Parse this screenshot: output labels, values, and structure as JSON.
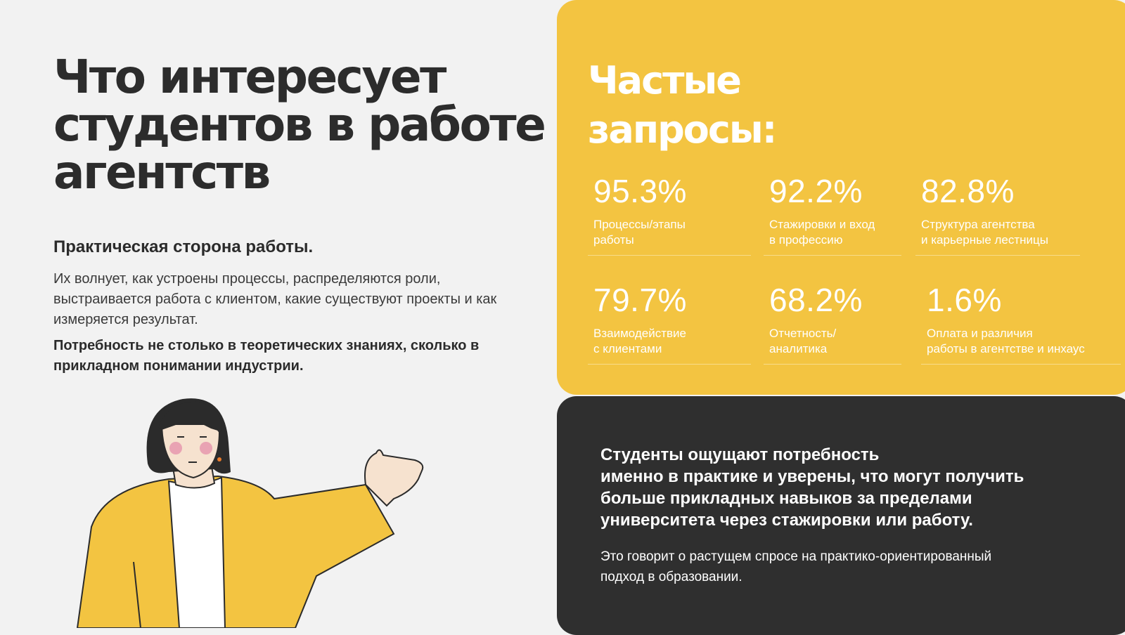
{
  "left": {
    "headline_lines": [
      "Что интересует",
      "студентов в работе",
      "агентств"
    ],
    "subheading": "Практическая сторона работы.",
    "paragraph": "Их волнует, как устроены процессы, распределяются роли, выстраивается работа с клиентом, какие существуют проекты и как измеряется результат.",
    "paragraph_bold": "Потребность не столько в теоретических знаниях, сколько в прикладном понимании индустрии."
  },
  "requests": {
    "title_lines": [
      "Частые",
      "запросы:"
    ],
    "stats": [
      {
        "value": "95.3%",
        "label": "Процессы/этапы\nработы"
      },
      {
        "value": "92.2%",
        "label": "Стажировки и вход\nв профессию"
      },
      {
        "value": "82.8%",
        "label": "Структура агентства\nи карьерные лестницы"
      },
      {
        "value": "79.7%",
        "label": "Взаимодействие\nс клиентами"
      },
      {
        "value": "68.2%",
        "label": "Отчетность/\nаналитика"
      },
      {
        "value": "1.6%",
        "label": "Оплата и различия\nработы в агентстве и инхаус"
      }
    ]
  },
  "conclusion": {
    "main": "Студенты ощущают потребность\nименно в практике и уверены, что могут получить\nбольше прикладных навыков за пределами\nуниверситета через стажировки или работу.",
    "sub": "Это говорит о растущем спросе на практико-ориентированный\nподход в образовании."
  },
  "colors": {
    "accent_yellow": "#f3c441",
    "dark_panel": "#2f2f2f",
    "background": "#f2f2f2",
    "text_dark": "#2b2b2b"
  }
}
